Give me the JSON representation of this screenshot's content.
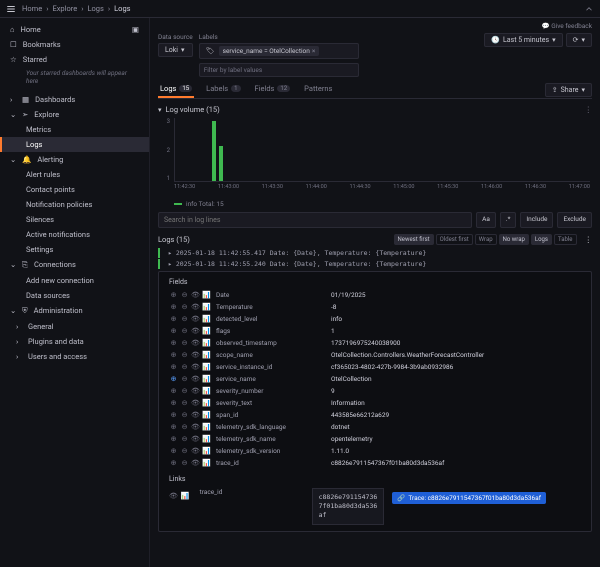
{
  "breadcrumbs": [
    "Home",
    "Explore",
    "Logs",
    "Logs"
  ],
  "feedback": "Give feedback",
  "sidebar": {
    "items": [
      {
        "label": "Home",
        "icon": "home"
      },
      {
        "label": "Bookmarks",
        "icon": "bookmark"
      },
      {
        "label": "Starred",
        "icon": "star"
      }
    ],
    "starred_msg": "Your starred dashboards will appear here",
    "groups": [
      {
        "label": "Dashboards",
        "icon": "grid",
        "chev": true
      },
      {
        "label": "Explore",
        "icon": "compass",
        "chev": true,
        "open": true,
        "children": [
          {
            "label": "Metrics"
          },
          {
            "label": "Logs",
            "active": true
          }
        ]
      },
      {
        "label": "Alerting",
        "icon": "bell",
        "chev": true,
        "open": true,
        "children": [
          {
            "label": "Alert rules"
          },
          {
            "label": "Contact points"
          },
          {
            "label": "Notification policies"
          },
          {
            "label": "Silences"
          },
          {
            "label": "Active notifications"
          },
          {
            "label": "Settings"
          }
        ]
      },
      {
        "label": "Connections",
        "icon": "plug",
        "chev": true,
        "open": true,
        "children": [
          {
            "label": "Add new connection"
          },
          {
            "label": "Data sources"
          }
        ]
      },
      {
        "label": "Administration",
        "icon": "shield",
        "chev": true,
        "open": true,
        "children": [
          {
            "label": "General",
            "chev": true
          },
          {
            "label": "Plugins and data",
            "chev": true
          },
          {
            "label": "Users and access",
            "chev": true
          }
        ]
      }
    ]
  },
  "query": {
    "ds_label": "Data source",
    "ds_value": "Loki",
    "labels_label": "Labels",
    "chip": "service_name = OtelCollection",
    "filter_placeholder": "Filter by label values",
    "time": "Last 5 minutes"
  },
  "tabs": [
    {
      "label": "Logs",
      "count": "15",
      "active": true
    },
    {
      "label": "Labels",
      "count": "1"
    },
    {
      "label": "Fields",
      "count": "12"
    },
    {
      "label": "Patterns"
    }
  ],
  "share": "Share",
  "volume": {
    "title": "Log volume (15)",
    "y": [
      "3",
      "2",
      "1"
    ],
    "x": [
      "11:42:30",
      "11:43:00",
      "11:43:30",
      "11:44:00",
      "11:44:30",
      "11:45:00",
      "11:45:30",
      "11:46:00",
      "11:46:30",
      "11:47:00"
    ],
    "bars": [
      {
        "x": 9,
        "h": 95
      },
      {
        "x": 10.5,
        "h": 55
      }
    ],
    "legend": "info  Total: 15"
  },
  "search": {
    "placeholder": "Search in log lines",
    "aa": "Aa",
    "include": "Include",
    "exclude": "Exclude"
  },
  "logs": {
    "title": "Logs (15)",
    "opts": [
      {
        "label": "Newest first",
        "active": true
      },
      {
        "label": "Oldest first"
      },
      {
        "label": "Wrap"
      },
      {
        "label": "No wrap",
        "active": true
      },
      {
        "label": "Logs",
        "active": true
      },
      {
        "label": "Table"
      }
    ],
    "lines": [
      "2025-01-18 11:42:55.417 Date: {Date}, Temperature: {Temperature}",
      "2025-01-18 11:42:55.240 Date: {Date}, Temperature: {Temperature}"
    ],
    "fields_header": "Fields",
    "fields": [
      {
        "k": "Date",
        "v": "01/19/2025"
      },
      {
        "k": "Temperature",
        "v": "-8"
      },
      {
        "k": "detected_level",
        "v": "info"
      },
      {
        "k": "flags",
        "v": "1"
      },
      {
        "k": "observed_timestamp",
        "v": "1737196975240038900"
      },
      {
        "k": "scope_name",
        "v": "OtelCollection.Controllers.WeatherForecastController"
      },
      {
        "k": "service_instance_id",
        "v": "cf365023-4802-427b-9984-3b9ab0932986"
      },
      {
        "k": "service_name",
        "v": "OtelCollection",
        "hl": true
      },
      {
        "k": "severity_number",
        "v": "9"
      },
      {
        "k": "severity_text",
        "v": "Information"
      },
      {
        "k": "span_id",
        "v": "443585e66212a629"
      },
      {
        "k": "telemetry_sdk_language",
        "v": "dotnet"
      },
      {
        "k": "telemetry_sdk_name",
        "v": "opentelemetry"
      },
      {
        "k": "telemetry_sdk_version",
        "v": "1.11.0"
      },
      {
        "k": "trace_id",
        "v": "c8826e7911547367f01ba80d3da536af"
      }
    ],
    "links_header": "Links",
    "trace_label": "trace_id",
    "trace_parts": [
      "c8826e791154736",
      "7f01ba80d3da536",
      "af"
    ],
    "trace_btn": "Trace: c8826e7911547367f01ba80d3da536af"
  }
}
